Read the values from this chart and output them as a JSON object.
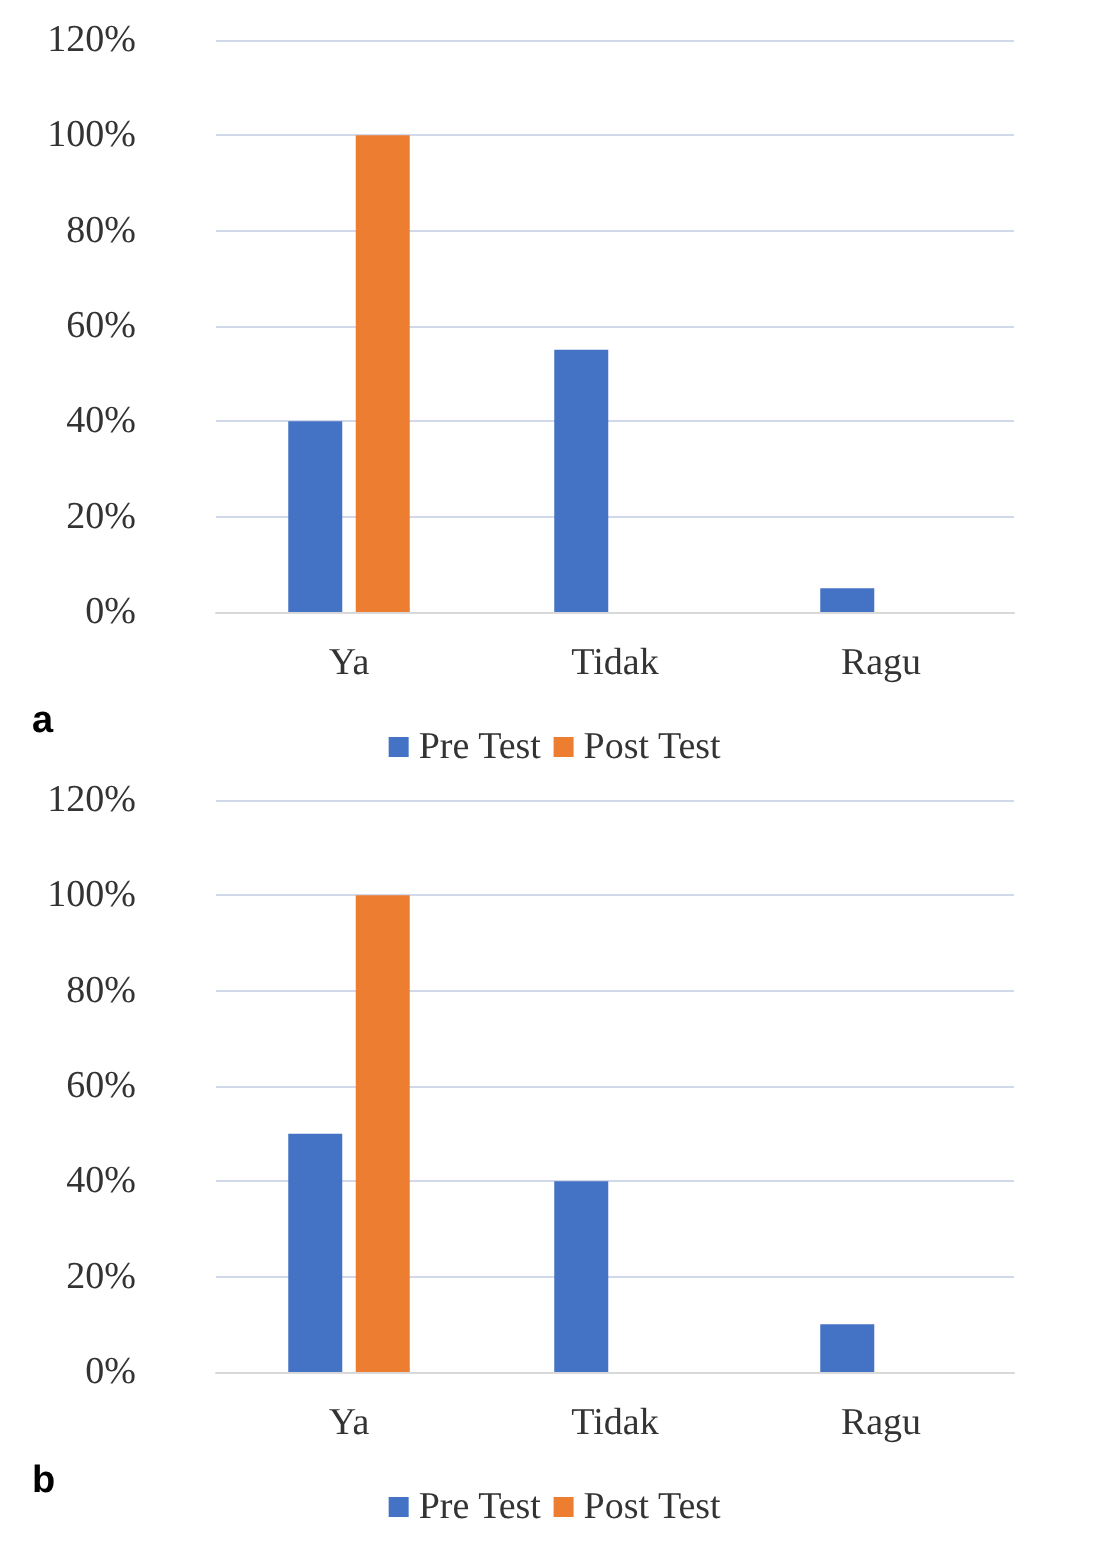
{
  "chart_data": [
    {
      "type": "bar",
      "categories": [
        "Ya",
        "Tidak",
        "Ragu"
      ],
      "series": [
        {
          "name": "Pre Test",
          "color": "#4472c4",
          "values": [
            40,
            55,
            5
          ]
        },
        {
          "name": "Post Test",
          "color": "#ed7d31",
          "values": [
            100,
            0,
            0
          ]
        }
      ],
      "ylim": [
        0,
        120
      ],
      "yticks": [
        {
          "value": 0,
          "label": "0%"
        },
        {
          "value": 20,
          "label": "20%"
        },
        {
          "value": 40,
          "label": "40%"
        },
        {
          "value": 60,
          "label": "60%"
        },
        {
          "value": 80,
          "label": "80%"
        },
        {
          "value": 100,
          "label": "100%"
        },
        {
          "value": 120,
          "label": "120%"
        }
      ],
      "grid": "y",
      "legend": "bottom",
      "annotations": [
        "a"
      ]
    },
    {
      "type": "bar",
      "categories": [
        "Ya",
        "Tidak",
        "Ragu"
      ],
      "series": [
        {
          "name": "Pre Test",
          "color": "#4472c4",
          "values": [
            50,
            40,
            10
          ]
        },
        {
          "name": "Post Test",
          "color": "#ed7d31",
          "values": [
            100,
            0,
            0
          ]
        }
      ],
      "ylim": [
        0,
        120
      ],
      "yticks": [
        {
          "value": 0,
          "label": "0%"
        },
        {
          "value": 20,
          "label": "20%"
        },
        {
          "value": 40,
          "label": "40%"
        },
        {
          "value": 60,
          "label": "60%"
        },
        {
          "value": 80,
          "label": "80%"
        },
        {
          "value": 100,
          "label": "100%"
        },
        {
          "value": 120,
          "label": "120%"
        }
      ],
      "grid": "y",
      "legend": "bottom",
      "annotations": [
        "b"
      ]
    }
  ]
}
